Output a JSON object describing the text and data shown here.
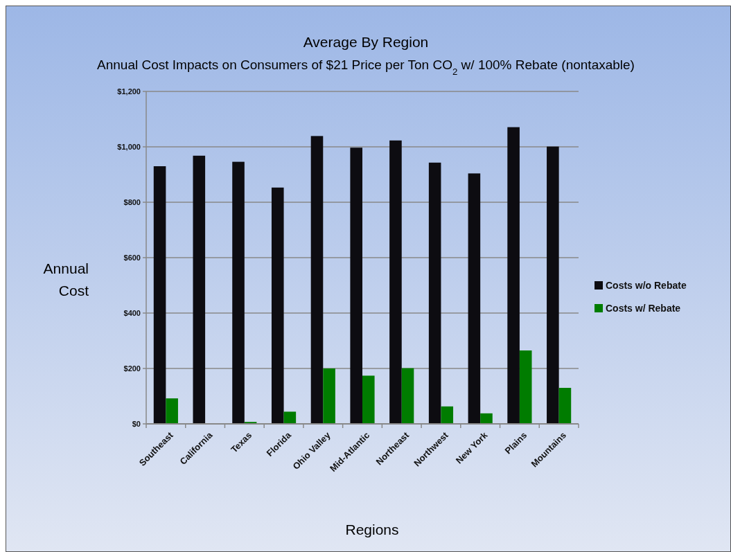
{
  "chart_data": {
    "type": "bar",
    "title": "Average By Region",
    "subtitle": "Annual Cost Impacts on Consumers of $21 Price per Ton CO$_{2}$ w/ 100% Rebate (nontaxable)",
    "xlabel": "Regions",
    "ylabel": "Annual Cost",
    "categories": [
      "Southeast",
      "California",
      "Texas",
      "Florida",
      "Ohio Valley",
      "Mid-Atlantic",
      "Northeast",
      "Northwest",
      "New York",
      "Plains",
      "Mountains"
    ],
    "series": [
      {
        "name": "Costs w/o Rebate",
        "color": "#0d0c11",
        "values": [
          930,
          968,
          946,
          853,
          1039,
          997,
          1023,
          943,
          904,
          1071,
          1001
        ]
      },
      {
        "name": "Costs w/ Rebate",
        "color": "#007c00",
        "values": [
          92,
          0,
          7,
          44,
          200,
          174,
          201,
          63,
          38,
          265,
          130
        ]
      }
    ],
    "ylim": [
      0,
      1200
    ],
    "yticks": [
      {
        "value": 0,
        "label": "$0"
      },
      {
        "value": 200,
        "label": "$200"
      },
      {
        "value": 400,
        "label": "$400"
      },
      {
        "value": 600,
        "label": "$600"
      },
      {
        "value": 800,
        "label": "$800"
      },
      {
        "value": 1000,
        "label": "$1,000"
      },
      {
        "value": 1200,
        "label": "$1,200"
      }
    ],
    "grid": "y",
    "legend": "right"
  }
}
